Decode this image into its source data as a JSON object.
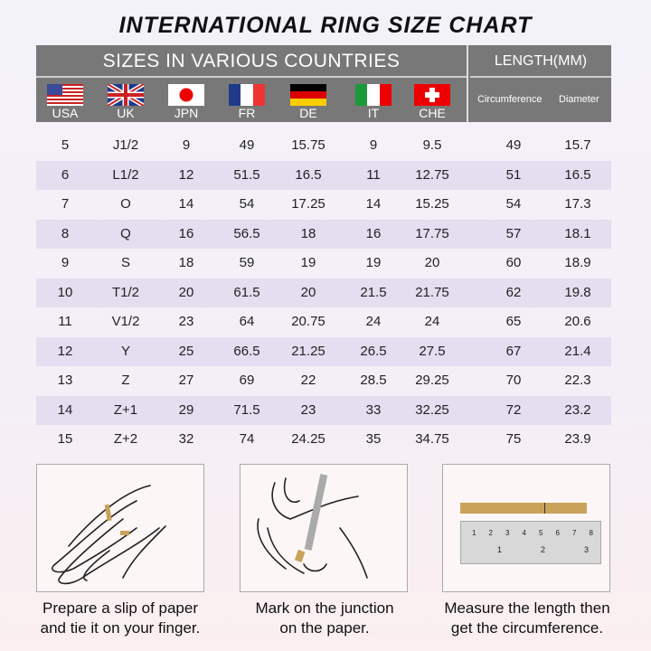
{
  "title": "INTERNATIONAL RING SIZE CHART",
  "header": {
    "countries_label": "SIZES IN VARIOUS COUNTRIES",
    "length_label": "LENGTH(MM)",
    "countries": [
      {
        "code": "USA",
        "flag": "us-flag"
      },
      {
        "code": "UK",
        "flag": "uk-flag"
      },
      {
        "code": "JPN",
        "flag": "japan-flag"
      },
      {
        "code": "FR",
        "flag": "france-flag"
      },
      {
        "code": "DE",
        "flag": "germany-flag"
      },
      {
        "code": "IT",
        "flag": "italy-flag"
      },
      {
        "code": "CHE",
        "flag": "switzerland-flag"
      }
    ],
    "circumference_label": "Circumference",
    "diameter_label": "Diameter"
  },
  "rows": [
    [
      "5",
      "J1/2",
      "9",
      "49",
      "15.75",
      "9",
      "9.5",
      "49",
      "15.7"
    ],
    [
      "6",
      "L1/2",
      "12",
      "51.5",
      "16.5",
      "11",
      "12.75",
      "51",
      "16.5"
    ],
    [
      "7",
      "O",
      "14",
      "54",
      "17.25",
      "14",
      "15.25",
      "54",
      "17.3"
    ],
    [
      "8",
      "Q",
      "16",
      "56.5",
      "18",
      "16",
      "17.75",
      "57",
      "18.1"
    ],
    [
      "9",
      "S",
      "18",
      "59",
      "19",
      "19",
      "20",
      "60",
      "18.9"
    ],
    [
      "10",
      "T1/2",
      "20",
      "61.5",
      "20",
      "21.5",
      "21.75",
      "62",
      "19.8"
    ],
    [
      "11",
      "V1/2",
      "23",
      "64",
      "20.75",
      "24",
      "24",
      "65",
      "20.6"
    ],
    [
      "12",
      "Y",
      "25",
      "66.5",
      "21.25",
      "26.5",
      "27.5",
      "67",
      "21.4"
    ],
    [
      "13",
      "Z",
      "27",
      "69",
      "22",
      "28.5",
      "29.25",
      "70",
      "22.3"
    ],
    [
      "14",
      "Z+1",
      "29",
      "71.5",
      "23",
      "33",
      "32.25",
      "72",
      "23.2"
    ],
    [
      "15",
      "Z+2",
      "32",
      "74",
      "24.25",
      "35",
      "34.75",
      "75",
      "23.9"
    ]
  ],
  "colors": {
    "header_bg": "#787878",
    "alt_row": "#e4def0",
    "paper": "#c9a25a"
  },
  "steps": [
    {
      "line1": "Prepare a slip of paper",
      "line2": "and tie it on your finger."
    },
    {
      "line1": "Mark on the junction",
      "line2": "on the paper."
    },
    {
      "line1": "Measure the length then",
      "line2": "get the circumference."
    }
  ],
  "ruler": {
    "cm": [
      "1",
      "2",
      "3",
      "4",
      "5",
      "6",
      "7",
      "8"
    ],
    "inch": [
      "1",
      "2",
      "3"
    ]
  }
}
